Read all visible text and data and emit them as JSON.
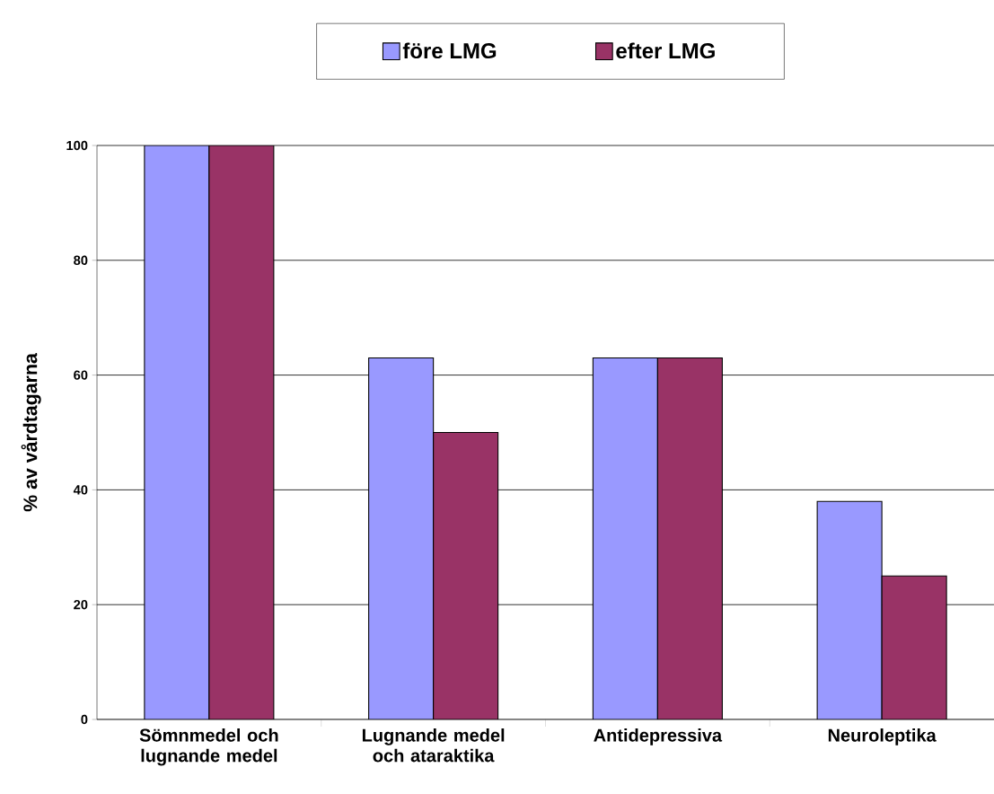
{
  "chart_data": {
    "type": "bar",
    "ylabel": "% av vårdtagarna",
    "categories": [
      "Sömnmedel och lugnande medel",
      "Lugnande medel och ataraktika",
      "Antidepressiva",
      "Neuroleptika"
    ],
    "series": [
      {
        "name": "före LMG",
        "color": "#9999ff",
        "values": [
          100,
          63,
          63,
          38
        ]
      },
      {
        "name": "efter LMG",
        "color": "#993366",
        "values": [
          100,
          50,
          63,
          25
        ]
      }
    ],
    "ylim": [
      0,
      100
    ],
    "yticks": [
      0,
      20,
      40,
      60,
      80,
      100
    ],
    "grid": "y",
    "legend": "top"
  }
}
